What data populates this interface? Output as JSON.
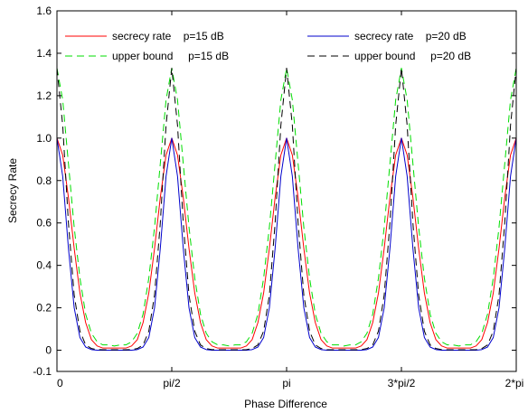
{
  "chart_data": {
    "type": "line",
    "title": "",
    "xlabel": "Phase Difference",
    "ylabel": "Secrecy Rate",
    "xlim": [
      0,
      6.2832
    ],
    "ylim": [
      -0.1,
      1.6
    ],
    "xticks": [
      {
        "value": 0,
        "label": "0"
      },
      {
        "value": 1.5708,
        "label": "pi/2"
      },
      {
        "value": 3.1416,
        "label": "pi"
      },
      {
        "value": 4.7124,
        "label": "3*pi/2"
      },
      {
        "value": 6.2832,
        "label": "2*pi"
      }
    ],
    "yticks": [
      {
        "value": -0.1,
        "label": "-0.1"
      },
      {
        "value": 0,
        "label": "0"
      },
      {
        "value": 0.2,
        "label": "0.2"
      },
      {
        "value": 0.4,
        "label": "0.4"
      },
      {
        "value": 0.6,
        "label": "0.6"
      },
      {
        "value": 0.8,
        "label": "0.8"
      },
      {
        "value": 1.0,
        "label": "1.0"
      },
      {
        "value": 1.2,
        "label": "1.2"
      },
      {
        "value": 1.4,
        "label": "1.4"
      },
      {
        "value": 1.6,
        "label": "1.6"
      }
    ],
    "grid": false,
    "legend_placement": "top",
    "x": [
      0.0,
      0.0785,
      0.1571,
      0.2356,
      0.3142,
      0.3927,
      0.4712,
      0.5498,
      0.6283,
      0.7069,
      0.7854,
      0.8639,
      0.9425,
      1.021,
      1.0996,
      1.1781,
      1.2566,
      1.3352,
      1.4137,
      1.4923,
      1.5708
    ],
    "series": [
      {
        "name": "secrecy rate    p=15 dB",
        "color": "#ff0000",
        "dash": "solid",
        "values": [
          1.0,
          0.92,
          0.72,
          0.48,
          0.27,
          0.13,
          0.05,
          0.02,
          0.01,
          0.01,
          0.01,
          0.01,
          0.01,
          0.02,
          0.05,
          0.13,
          0.27,
          0.48,
          0.72,
          0.92,
          1.0
        ]
      },
      {
        "name": "upper bound     p=15 dB",
        "color": "#00dd00",
        "dash": "dashed",
        "values": [
          1.33,
          1.18,
          0.88,
          0.58,
          0.34,
          0.17,
          0.08,
          0.04,
          0.025,
          0.025,
          0.02,
          0.025,
          0.025,
          0.04,
          0.08,
          0.17,
          0.34,
          0.58,
          0.88,
          1.18,
          1.33
        ]
      },
      {
        "name": "secrecy rate    p=20 dB",
        "color": "#0000cc",
        "dash": "solid",
        "values": [
          1.0,
          0.82,
          0.48,
          0.2,
          0.06,
          0.015,
          0.003,
          0.0,
          0.0,
          0.0,
          0.0,
          0.0,
          0.0,
          0.0,
          0.003,
          0.015,
          0.06,
          0.2,
          0.48,
          0.82,
          1.0
        ]
      },
      {
        "name": "upper bound     p=20 dB",
        "color": "#000000",
        "dash": "dashed",
        "values": [
          1.33,
          1.06,
          0.6,
          0.26,
          0.09,
          0.025,
          0.008,
          0.003,
          0.002,
          0.002,
          0.002,
          0.002,
          0.002,
          0.003,
          0.008,
          0.025,
          0.09,
          0.26,
          0.6,
          1.06,
          1.33
        ]
      }
    ],
    "periodic_repeat": 4
  },
  "legend": {
    "left": [
      {
        "label": "secrecy rate    p=15 dB"
      },
      {
        "label": "upper bound     p=15 dB"
      }
    ],
    "right": [
      {
        "label": "secrecy rate    p=20 dB"
      },
      {
        "label": "upper bound     p=20 dB"
      }
    ]
  }
}
